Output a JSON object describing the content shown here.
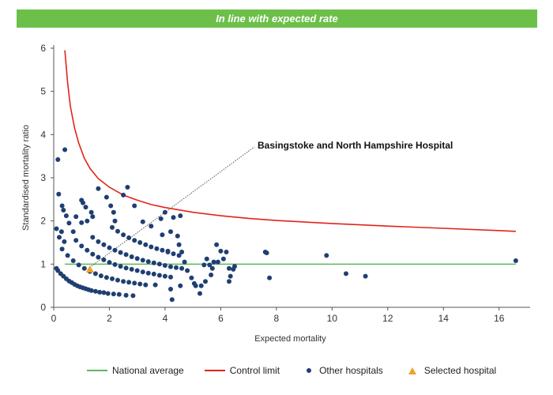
{
  "banner": {
    "text": "In line with expected rate",
    "color": "#6cc04a"
  },
  "colors": {
    "national_average": "#5cb85c",
    "control_limit": "#e2231a",
    "other_hospitals": "#1f3f73",
    "selected_hospital": "#f0a02a",
    "axis": "#555555"
  },
  "legend": {
    "national_average": "National average",
    "control_limit": "Control limit",
    "other_hospitals": "Other hospitals",
    "selected_hospital": "Selected hospital"
  },
  "chart_data": {
    "type": "scatter",
    "title": "",
    "xlabel": "Expected mortality",
    "ylabel": "Standardised mortality ratio",
    "xlim": [
      0,
      17
    ],
    "ylim": [
      0,
      6
    ],
    "x_ticks": [
      "0",
      "2",
      "4",
      "6",
      "8",
      "10",
      "12",
      "14",
      "16"
    ],
    "y_ticks": [
      "0",
      "1",
      "2",
      "3",
      "4",
      "5",
      "6"
    ],
    "national_average": 1,
    "control_limit": {
      "x": [
        0.4,
        0.5,
        0.6,
        0.75,
        0.9,
        1.1,
        1.3,
        1.6,
        2,
        2.5,
        3,
        3.5,
        4,
        5,
        6,
        7,
        8,
        10,
        12,
        14,
        16.6
      ],
      "y": [
        5.95,
        5.2,
        4.65,
        4.15,
        3.8,
        3.45,
        3.22,
        2.98,
        2.78,
        2.6,
        2.48,
        2.38,
        2.31,
        2.2,
        2.12,
        2.06,
        2.01,
        1.94,
        1.88,
        1.83,
        1.76
      ]
    },
    "annotation": {
      "text": "Basingstoke and North Hampshire Hospital",
      "x": 1.3,
      "y": 0.88
    },
    "series": [
      {
        "name": "Other hospitals",
        "points": [
          [
            0.15,
            3.42
          ],
          [
            0.4,
            3.65
          ],
          [
            0.18,
            2.62
          ],
          [
            0.3,
            2.35
          ],
          [
            0.35,
            2.25
          ],
          [
            0.45,
            2.12
          ],
          [
            0.28,
            1.75
          ],
          [
            0.1,
            1.82
          ],
          [
            0.2,
            1.62
          ],
          [
            0.38,
            1.52
          ],
          [
            0.55,
            1.95
          ],
          [
            0.8,
            2.1
          ],
          [
            0.7,
            1.75
          ],
          [
            1.0,
            2.48
          ],
          [
            1.05,
            2.42
          ],
          [
            1.15,
            2.32
          ],
          [
            1.35,
            2.2
          ],
          [
            1.4,
            2.1
          ],
          [
            1.0,
            1.96
          ],
          [
            1.2,
            2.0
          ],
          [
            1.6,
            2.75
          ],
          [
            1.9,
            2.55
          ],
          [
            2.05,
            2.35
          ],
          [
            2.15,
            2.2
          ],
          [
            2.2,
            2.0
          ],
          [
            2.5,
            2.6
          ],
          [
            2.65,
            2.78
          ],
          [
            2.9,
            2.35
          ],
          [
            3.2,
            1.98
          ],
          [
            3.5,
            1.88
          ],
          [
            3.85,
            2.05
          ],
          [
            4.0,
            2.2
          ],
          [
            4.3,
            2.08
          ],
          [
            4.55,
            2.12
          ],
          [
            3.9,
            1.68
          ],
          [
            4.2,
            1.75
          ],
          [
            4.45,
            1.65
          ],
          [
            4.5,
            1.45
          ],
          [
            4.1,
            1.3
          ],
          [
            4.6,
            1.28
          ],
          [
            4.7,
            1.05
          ],
          [
            4.8,
            0.85
          ],
          [
            4.95,
            0.68
          ],
          [
            5.1,
            0.5
          ],
          [
            5.25,
            0.32
          ],
          [
            4.55,
            0.5
          ],
          [
            4.2,
            0.42
          ],
          [
            4.25,
            0.18
          ],
          [
            3.65,
            0.52
          ],
          [
            5.4,
            0.98
          ],
          [
            5.5,
            1.12
          ],
          [
            5.6,
            0.98
          ],
          [
            5.7,
            0.9
          ],
          [
            5.75,
            1.05
          ],
          [
            5.9,
            1.05
          ],
          [
            5.85,
            1.45
          ],
          [
            6.0,
            1.3
          ],
          [
            6.2,
            1.28
          ],
          [
            6.1,
            1.12
          ],
          [
            6.3,
            0.9
          ],
          [
            6.45,
            0.88
          ],
          [
            6.5,
            0.95
          ],
          [
            6.35,
            0.72
          ],
          [
            6.3,
            0.6
          ],
          [
            5.65,
            0.75
          ],
          [
            5.45,
            0.6
          ],
          [
            5.3,
            0.5
          ],
          [
            5.05,
            0.55
          ],
          [
            7.6,
            1.28
          ],
          [
            7.65,
            1.26
          ],
          [
            7.75,
            0.68
          ],
          [
            9.8,
            1.2
          ],
          [
            10.5,
            0.78
          ],
          [
            11.2,
            0.72
          ],
          [
            16.6,
            1.08
          ],
          [
            0.1,
            0.9
          ],
          [
            0.15,
            0.85
          ],
          [
            0.25,
            0.78
          ],
          [
            0.35,
            0.72
          ],
          [
            0.45,
            0.66
          ],
          [
            0.55,
            0.61
          ],
          [
            0.65,
            0.57
          ],
          [
            0.75,
            0.53
          ],
          [
            0.85,
            0.5
          ],
          [
            0.95,
            0.47
          ],
          [
            1.05,
            0.45
          ],
          [
            1.15,
            0.43
          ],
          [
            1.25,
            0.41
          ],
          [
            1.35,
            0.39
          ],
          [
            1.5,
            0.37
          ],
          [
            1.65,
            0.35
          ],
          [
            1.8,
            0.34
          ],
          [
            1.95,
            0.32
          ],
          [
            2.15,
            0.31
          ],
          [
            2.35,
            0.3
          ],
          [
            2.6,
            0.28
          ],
          [
            2.85,
            0.27
          ],
          [
            0.3,
            1.35
          ],
          [
            0.5,
            1.2
          ],
          [
            0.7,
            1.08
          ],
          [
            0.9,
            0.98
          ],
          [
            1.1,
            0.9
          ],
          [
            1.3,
            0.83
          ],
          [
            1.5,
            0.78
          ],
          [
            1.7,
            0.73
          ],
          [
            1.9,
            0.69
          ],
          [
            2.1,
            0.66
          ],
          [
            2.3,
            0.63
          ],
          [
            2.5,
            0.6
          ],
          [
            2.7,
            0.58
          ],
          [
            2.9,
            0.56
          ],
          [
            3.1,
            0.54
          ],
          [
            3.3,
            0.52
          ],
          [
            0.8,
            1.55
          ],
          [
            1.0,
            1.42
          ],
          [
            1.2,
            1.32
          ],
          [
            1.4,
            1.23
          ],
          [
            1.6,
            1.16
          ],
          [
            1.8,
            1.1
          ],
          [
            2.0,
            1.04
          ],
          [
            2.2,
            0.99
          ],
          [
            2.4,
            0.95
          ],
          [
            2.6,
            0.91
          ],
          [
            2.8,
            0.88
          ],
          [
            3.0,
            0.85
          ],
          [
            3.2,
            0.82
          ],
          [
            3.4,
            0.79
          ],
          [
            3.6,
            0.77
          ],
          [
            3.8,
            0.74
          ],
          [
            4.0,
            0.72
          ],
          [
            4.2,
            0.7
          ],
          [
            1.4,
            1.62
          ],
          [
            1.6,
            1.52
          ],
          [
            1.8,
            1.45
          ],
          [
            2.0,
            1.38
          ],
          [
            2.2,
            1.32
          ],
          [
            2.4,
            1.27
          ],
          [
            2.6,
            1.22
          ],
          [
            2.8,
            1.17
          ],
          [
            3.0,
            1.13
          ],
          [
            3.2,
            1.09
          ],
          [
            3.4,
            1.06
          ],
          [
            3.6,
            1.03
          ],
          [
            3.8,
            1.0
          ],
          [
            4.0,
            0.97
          ],
          [
            4.2,
            0.94
          ],
          [
            4.4,
            0.92
          ],
          [
            4.6,
            0.9
          ],
          [
            2.1,
            1.85
          ],
          [
            2.3,
            1.76
          ],
          [
            2.5,
            1.68
          ],
          [
            2.7,
            1.61
          ],
          [
            2.9,
            1.55
          ],
          [
            3.1,
            1.5
          ],
          [
            3.3,
            1.45
          ],
          [
            3.5,
            1.4
          ],
          [
            3.7,
            1.36
          ],
          [
            3.9,
            1.32
          ],
          [
            4.1,
            1.28
          ],
          [
            4.3,
            1.24
          ],
          [
            4.5,
            1.2
          ]
        ]
      },
      {
        "name": "Selected hospital",
        "points": [
          [
            1.3,
            0.88
          ]
        ]
      }
    ]
  }
}
